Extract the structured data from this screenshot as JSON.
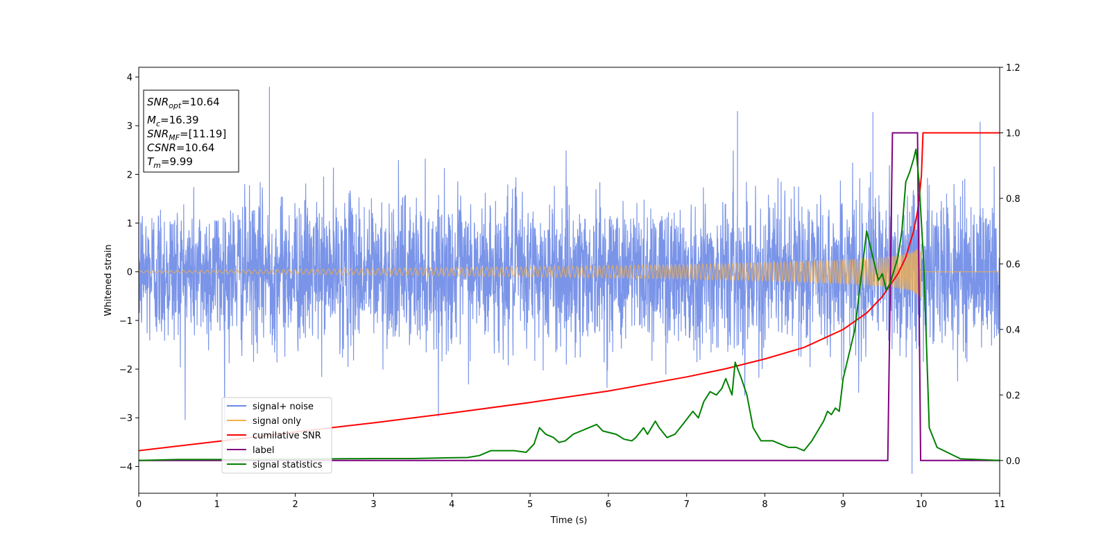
{
  "chart_data": {
    "type": "line",
    "xlabel": "Time (s)",
    "ylabel": "Whitened strain",
    "xlim": [
      0,
      11
    ],
    "ylim": [
      -4.55,
      4.2
    ],
    "y2lim": [
      -0.1,
      1.2
    ],
    "x_ticks": [
      0,
      1,
      2,
      3,
      4,
      5,
      6,
      7,
      8,
      9,
      10,
      11
    ],
    "y_ticks": [
      -4,
      -3,
      -2,
      -1,
      0,
      1,
      2,
      3,
      4
    ],
    "y2_ticks": [
      0.0,
      0.2,
      0.4,
      0.6,
      0.8,
      1.0,
      1.2
    ],
    "x_tick_labels": [
      "0",
      "1",
      "2",
      "3",
      "4",
      "5",
      "6",
      "7",
      "8",
      "9",
      "10",
      "11"
    ],
    "y_tick_labels": [
      "−4",
      "−3",
      "−2",
      "−1",
      "0",
      "1",
      "2",
      "3",
      "4"
    ],
    "y2_tick_labels": [
      "0.0",
      "0.2",
      "0.4",
      "0.6",
      "0.8",
      "1.0",
      "1.2"
    ],
    "legend_position": "lower-left",
    "colors": {
      "signal_noise": "#6b88e6",
      "signal_only": "#f5b04a",
      "cumulative_snr": "#ff0000",
      "label": "#800080",
      "signal_statistics": "#008000"
    },
    "legend": [
      {
        "key": "signal_noise",
        "label": "signal+ noise"
      },
      {
        "key": "signal_only",
        "label": "signal only"
      },
      {
        "key": "cumulative_snr",
        "label": "cumilative SNR"
      },
      {
        "key": "label",
        "label": "label"
      },
      {
        "key": "signal_statistics",
        "label": "signal statistics"
      }
    ],
    "annotations": {
      "snr_opt": {
        "sym": "SNR",
        "sub": "opt",
        "value": "=10.64"
      },
      "mc": {
        "sym": "M",
        "sub": "c",
        "value": "=16.39"
      },
      "snr_mf": {
        "sym": "SNR",
        "sub": "MF",
        "value": "=[11.19]"
      },
      "csnr": {
        "sym": "CSNR",
        "sub": "",
        "value": "=10.64"
      },
      "tm": {
        "sym": "T",
        "sub": "m",
        "value": "=9.99"
      }
    },
    "series": {
      "signal_noise": {
        "axis": "left",
        "noise_std": 0.75,
        "note_peaks": [
          [
            1.67,
            3.8
          ],
          [
            9.88,
            -4.15
          ],
          [
            9.38,
            3.28
          ],
          [
            7.65,
            3.3
          ],
          [
            10.75,
            3.08
          ]
        ]
      },
      "signal_only": {
        "axis": "left",
        "t_start": 0,
        "t_merge": 9.99,
        "amp_start": 0.02,
        "amp_peak": 0.55
      },
      "cumulative_snr": {
        "axis": "right",
        "x": [
          0,
          1,
          2,
          3,
          4,
          5,
          6,
          7,
          7.5,
          8,
          8.5,
          9,
          9.3,
          9.5,
          9.7,
          9.8,
          9.9,
          9.95,
          9.98,
          10.0,
          10.02,
          11
        ],
        "y": [
          0.03,
          0.058,
          0.087,
          0.115,
          0.145,
          0.177,
          0.212,
          0.255,
          0.28,
          0.31,
          0.345,
          0.4,
          0.45,
          0.5,
          0.57,
          0.62,
          0.7,
          0.76,
          0.82,
          0.87,
          1.0,
          1.0
        ]
      },
      "label": {
        "axis": "right",
        "x": [
          0,
          9.57,
          9.63,
          9.95,
          9.99,
          11
        ],
        "y": [
          0,
          0,
          1,
          1,
          0,
          0
        ]
      },
      "signal_statistics": {
        "axis": "right",
        "x": [
          0,
          0.5,
          1,
          1.5,
          2,
          2.5,
          3,
          3.5,
          3.9,
          4.2,
          4.35,
          4.5,
          4.6,
          4.8,
          4.95,
          5.05,
          5.12,
          5.2,
          5.3,
          5.37,
          5.45,
          5.55,
          5.65,
          5.75,
          5.85,
          5.93,
          6.1,
          6.2,
          6.3,
          6.35,
          6.45,
          6.5,
          6.6,
          6.65,
          6.75,
          6.85,
          6.95,
          7.08,
          7.15,
          7.22,
          7.3,
          7.38,
          7.45,
          7.5,
          7.58,
          7.62,
          7.7,
          7.77,
          7.85,
          7.95,
          8.1,
          8.2,
          8.3,
          8.4,
          8.45,
          8.5,
          8.6,
          8.7,
          8.75,
          8.8,
          8.85,
          8.9,
          8.95,
          9.0,
          9.05,
          9.1,
          9.15,
          9.2,
          9.25,
          9.3,
          9.35,
          9.4,
          9.45,
          9.5,
          9.52,
          9.55,
          9.6,
          9.65,
          9.7,
          9.75,
          9.8,
          9.85,
          9.9,
          9.93,
          9.97,
          10.03,
          10.1,
          10.2,
          10.5,
          11
        ],
        "y": [
          0.0,
          0.003,
          0.003,
          0.003,
          0.004,
          0.005,
          0.006,
          0.006,
          0.008,
          0.009,
          0.015,
          0.03,
          0.03,
          0.03,
          0.025,
          0.05,
          0.1,
          0.08,
          0.07,
          0.055,
          0.06,
          0.08,
          0.09,
          0.1,
          0.11,
          0.09,
          0.08,
          0.065,
          0.06,
          0.07,
          0.1,
          0.08,
          0.12,
          0.1,
          0.07,
          0.08,
          0.11,
          0.15,
          0.13,
          0.18,
          0.21,
          0.2,
          0.22,
          0.25,
          0.2,
          0.3,
          0.25,
          0.2,
          0.1,
          0.06,
          0.06,
          0.05,
          0.04,
          0.04,
          0.035,
          0.03,
          0.06,
          0.1,
          0.12,
          0.15,
          0.14,
          0.16,
          0.15,
          0.25,
          0.3,
          0.35,
          0.4,
          0.5,
          0.6,
          0.7,
          0.65,
          0.6,
          0.55,
          0.57,
          0.55,
          0.52,
          0.54,
          0.58,
          0.62,
          0.7,
          0.85,
          0.88,
          0.92,
          0.95,
          0.85,
          0.6,
          0.1,
          0.04,
          0.005,
          0.0
        ]
      }
    }
  }
}
